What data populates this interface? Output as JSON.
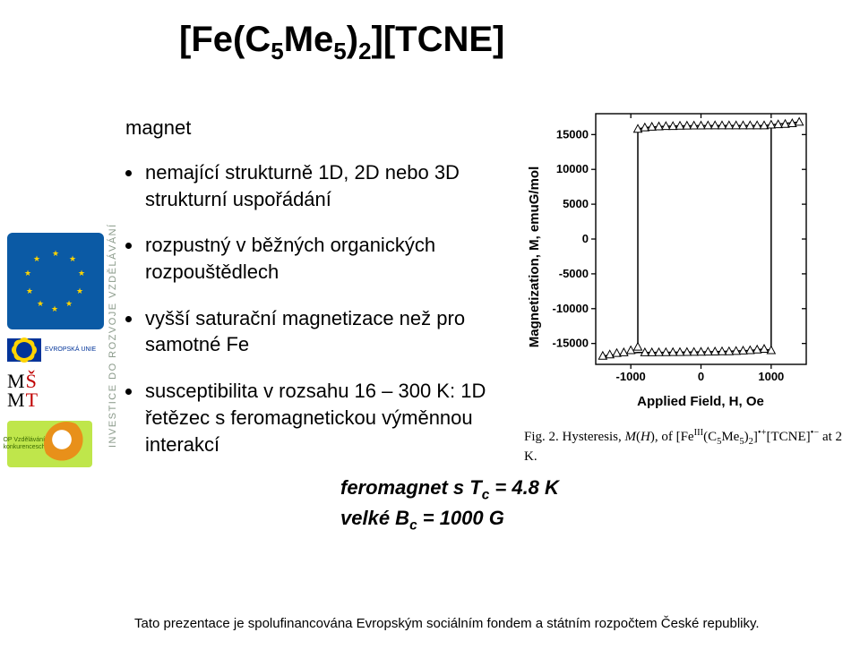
{
  "title_html": "[Fe(C<sub>5</sub>Me<sub>5</sub>)<sub>2</sub>][TCNE]",
  "magnet_label": "magnet",
  "bullets": [
    "nemající strukturně 1D, 2D nebo 3D strukturní uspořádání",
    "rozpustný v běžných organických rozpouštědlech",
    "vyšší saturační magnetizace než pro samotné Fe",
    "susceptibilita v rozsahu 16 – 300 K: 1D řetězec s feromagnetickou výměnnou interakcí"
  ],
  "feromagnet_line1_html": "feromagnet s T<sub>c</sub> = 4.8 K",
  "feromagnet_line2_html": "velké B<sub>c</sub> = 1000 G",
  "fig_caption_html": "Fig. 2. Hysteresis, <i>M</i>(<i>H</i>), of [Fe<sup>III</sup>(C<sub>5</sub>Me<sub>5</sub>)<sub>2</sub>]<sup>•+</sup>[TCNE]<sup>•−</sup> at 2 K.",
  "vertical_label": "INVESTICE DO ROZVOJE VZDĚLÁVÁNÍ",
  "eu_text": "EVROPSKÁ UNIE",
  "opvk_text": "OP Vzdělávání pro konkurenceschopnost",
  "footer": "Tato prezentace je spolufinancována Evropským sociálním fondem a státním rozpočtem České republiky.",
  "plot": {
    "type": "scatter-line",
    "xlabel": "Applied  Field,  H,  Oe",
    "ylabel": "Magnetization,  M,  emuG/mol",
    "xlim": [
      -1500,
      1500
    ],
    "ylim": [
      -18000,
      18000
    ],
    "xticks": [
      -1000,
      0,
      1000
    ],
    "yticks": [
      -15000,
      -10000,
      -5000,
      0,
      5000,
      10000,
      15000
    ],
    "axis_color": "#000000",
    "background_color": "#ffffff",
    "point_color": "#000000",
    "line_color": "#000000",
    "line_width": 1.5,
    "marker": "triangle-open",
    "marker_size": 6,
    "points": [
      [
        -1400,
        -16800
      ],
      [
        -1300,
        -16600
      ],
      [
        -1200,
        -16400
      ],
      [
        -1100,
        -16300
      ],
      [
        -1000,
        -16000
      ],
      [
        -900,
        -15500
      ],
      [
        -900,
        15800
      ],
      [
        -800,
        16000
      ],
      [
        -700,
        16100
      ],
      [
        -600,
        16150
      ],
      [
        -500,
        16200
      ],
      [
        -400,
        16200
      ],
      [
        -300,
        16250
      ],
      [
        -200,
        16260
      ],
      [
        -100,
        16270
      ],
      [
        0,
        16280
      ],
      [
        100,
        16290
      ],
      [
        200,
        16300
      ],
      [
        300,
        16300
      ],
      [
        400,
        16300
      ],
      [
        500,
        16300
      ],
      [
        600,
        16300
      ],
      [
        700,
        16300
      ],
      [
        800,
        16300
      ],
      [
        900,
        16300
      ],
      [
        1000,
        16400
      ],
      [
        1000,
        -16000
      ],
      [
        1100,
        16450
      ],
      [
        1200,
        16500
      ],
      [
        1300,
        16600
      ],
      [
        1400,
        16800
      ],
      [
        900,
        -15800
      ],
      [
        800,
        -15900
      ],
      [
        700,
        -16000
      ],
      [
        600,
        -16050
      ],
      [
        500,
        -16100
      ],
      [
        400,
        -16150
      ],
      [
        300,
        -16150
      ],
      [
        200,
        -16180
      ],
      [
        100,
        -16200
      ],
      [
        0,
        -16220
      ],
      [
        -100,
        -16240
      ],
      [
        -200,
        -16250
      ],
      [
        -300,
        -16260
      ],
      [
        -400,
        -16270
      ],
      [
        -500,
        -16280
      ],
      [
        -600,
        -16290
      ],
      [
        -700,
        -16300
      ],
      [
        -800,
        -16300
      ]
    ],
    "polyline_upper": [
      [
        -900,
        -15500
      ],
      [
        -900,
        15800
      ],
      [
        -800,
        16000
      ],
      [
        -600,
        16150
      ],
      [
        -300,
        16250
      ],
      [
        0,
        16280
      ],
      [
        500,
        16300
      ],
      [
        900,
        16300
      ],
      [
        1000,
        16400
      ],
      [
        1400,
        16800
      ]
    ],
    "polyline_lower": [
      [
        1000,
        16400
      ],
      [
        1000,
        -16000
      ],
      [
        900,
        -15800
      ],
      [
        700,
        -16000
      ],
      [
        300,
        -16150
      ],
      [
        0,
        -16220
      ],
      [
        -500,
        -16280
      ],
      [
        -800,
        -16300
      ],
      [
        -900,
        -16300
      ],
      [
        -1400,
        -16800
      ]
    ]
  }
}
